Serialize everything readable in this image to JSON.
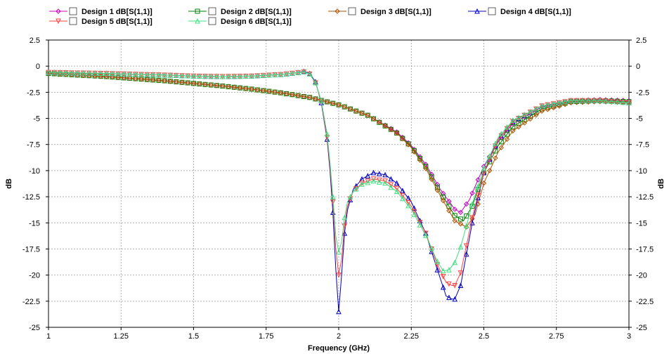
{
  "chart_data": {
    "type": "line",
    "title": "",
    "xlabel": "Frequency (GHz)",
    "ylabel": "dB",
    "ylabel_right": "dB",
    "xlim": [
      1,
      3
    ],
    "ylim": [
      -25,
      2.5
    ],
    "xticks": [
      1,
      1.25,
      1.5,
      1.75,
      2,
      2.25,
      2.5,
      2.75,
      3
    ],
    "yticks": [
      2.5,
      0,
      -2.5,
      -5,
      -7.5,
      -10,
      -12.5,
      -15,
      -17.5,
      -20,
      -22.5,
      -25
    ],
    "grid": true,
    "legend_position": "top",
    "series": [
      {
        "name": "Design 1 dB[S(1,1)]",
        "color": "#c000c0",
        "marker": "diamond",
        "x": [
          1.0,
          1.1,
          1.2,
          1.3,
          1.4,
          1.5,
          1.6,
          1.7,
          1.8,
          1.9,
          2.0,
          2.1,
          2.2,
          2.25,
          2.3,
          2.35,
          2.4,
          2.42,
          2.45,
          2.5,
          2.55,
          2.6,
          2.7,
          2.8,
          2.9,
          3.0
        ],
        "y": [
          -0.7,
          -0.85,
          -1.0,
          -1.2,
          -1.4,
          -1.65,
          -1.9,
          -2.2,
          -2.55,
          -3.0,
          -3.7,
          -4.7,
          -6.3,
          -7.6,
          -9.4,
          -11.8,
          -13.7,
          -14.0,
          -12.8,
          -9.6,
          -7.2,
          -5.5,
          -3.9,
          -3.3,
          -3.2,
          -3.3
        ]
      },
      {
        "name": "Design 2 dB[S(1,1)]",
        "color": "#008000",
        "marker": "square",
        "x": [
          1.0,
          1.1,
          1.2,
          1.3,
          1.4,
          1.5,
          1.6,
          1.7,
          1.8,
          1.9,
          2.0,
          2.1,
          2.2,
          2.25,
          2.3,
          2.35,
          2.4,
          2.43,
          2.46,
          2.5,
          2.55,
          2.6,
          2.7,
          2.8,
          2.9,
          3.0
        ],
        "y": [
          -0.7,
          -0.85,
          -1.0,
          -1.2,
          -1.4,
          -1.65,
          -1.9,
          -2.2,
          -2.55,
          -3.0,
          -3.7,
          -4.7,
          -6.4,
          -7.7,
          -9.6,
          -12.1,
          -14.3,
          -14.8,
          -13.4,
          -10.2,
          -7.6,
          -5.8,
          -4.1,
          -3.4,
          -3.3,
          -3.4
        ]
      },
      {
        "name": "Design 3 dB[S(1,1)]",
        "color": "#b05000",
        "marker": "diamond",
        "x": [
          1.0,
          1.1,
          1.2,
          1.3,
          1.4,
          1.5,
          1.6,
          1.7,
          1.8,
          1.9,
          2.0,
          2.1,
          2.2,
          2.25,
          2.3,
          2.35,
          2.4,
          2.44,
          2.47,
          2.5,
          2.55,
          2.6,
          2.7,
          2.8,
          2.9,
          3.0
        ],
        "y": [
          -0.7,
          -0.85,
          -1.0,
          -1.2,
          -1.4,
          -1.65,
          -1.9,
          -2.2,
          -2.55,
          -3.0,
          -3.7,
          -4.7,
          -6.4,
          -7.8,
          -9.8,
          -12.4,
          -14.8,
          -15.4,
          -14.2,
          -11.2,
          -8.2,
          -6.2,
          -4.3,
          -3.5,
          -3.4,
          -3.5
        ]
      },
      {
        "name": "Design 4 dB[S(1,1)]",
        "color": "#0000c0",
        "marker": "triangle",
        "x": [
          1.0,
          1.1,
          1.2,
          1.3,
          1.4,
          1.5,
          1.6,
          1.7,
          1.8,
          1.85,
          1.88,
          1.9,
          1.92,
          1.94,
          1.96,
          1.97,
          1.98,
          1.99,
          2.0,
          2.01,
          2.02,
          2.03,
          2.05,
          2.08,
          2.12,
          2.16,
          2.2,
          2.25,
          2.3,
          2.34,
          2.37,
          2.39,
          2.4,
          2.42,
          2.44,
          2.46,
          2.5,
          2.55,
          2.6,
          2.7,
          2.8,
          2.9,
          3.0
        ],
        "y": [
          -0.6,
          -0.65,
          -0.7,
          -0.78,
          -0.85,
          -0.95,
          -1.0,
          -0.95,
          -0.8,
          -0.65,
          -0.5,
          -0.7,
          -1.5,
          -3.5,
          -7.0,
          -10.0,
          -14.0,
          -19.5,
          -23.5,
          -20.0,
          -16.0,
          -13.8,
          -11.8,
          -10.8,
          -10.2,
          -10.4,
          -11.2,
          -13.0,
          -16.0,
          -19.5,
          -22.0,
          -22.3,
          -22.3,
          -21.0,
          -18.0,
          -15.0,
          -10.2,
          -7.0,
          -5.3,
          -3.8,
          -3.3,
          -3.3,
          -3.5
        ]
      },
      {
        "name": "Design 5 dB[S(1,1)]",
        "color": "#ff4040",
        "marker": "triangle-down",
        "x": [
          1.0,
          1.1,
          1.2,
          1.3,
          1.4,
          1.5,
          1.6,
          1.7,
          1.8,
          1.85,
          1.88,
          1.9,
          1.92,
          1.94,
          1.96,
          1.97,
          1.98,
          1.99,
          2.0,
          2.01,
          2.02,
          2.03,
          2.05,
          2.08,
          2.12,
          2.16,
          2.2,
          2.25,
          2.3,
          2.34,
          2.37,
          2.39,
          2.4,
          2.42,
          2.44,
          2.46,
          2.5,
          2.55,
          2.6,
          2.7,
          2.8,
          2.9,
          3.0
        ],
        "y": [
          -0.6,
          -0.65,
          -0.7,
          -0.78,
          -0.85,
          -0.95,
          -1.0,
          -0.95,
          -0.8,
          -0.65,
          -0.55,
          -0.75,
          -1.6,
          -3.4,
          -6.8,
          -9.6,
          -13.0,
          -17.5,
          -20.0,
          -18.5,
          -15.3,
          -13.4,
          -12.0,
          -11.2,
          -10.8,
          -11.0,
          -11.7,
          -13.4,
          -16.0,
          -19.0,
          -20.7,
          -21.0,
          -21.0,
          -19.8,
          -17.2,
          -14.5,
          -10.2,
          -7.0,
          -5.3,
          -3.8,
          -3.3,
          -3.3,
          -3.5
        ]
      },
      {
        "name": "Design 6 dB[S(1,1)]",
        "color": "#40e080",
        "marker": "triangle",
        "x": [
          1.0,
          1.1,
          1.2,
          1.3,
          1.4,
          1.5,
          1.6,
          1.7,
          1.8,
          1.85,
          1.88,
          1.9,
          1.92,
          1.94,
          1.96,
          1.97,
          1.98,
          1.99,
          2.0,
          2.01,
          2.02,
          2.03,
          2.05,
          2.08,
          2.12,
          2.16,
          2.2,
          2.25,
          2.3,
          2.34,
          2.36,
          2.38,
          2.4,
          2.42,
          2.44,
          2.46,
          2.5,
          2.55,
          2.6,
          2.7,
          2.8,
          2.9,
          3.0
        ],
        "y": [
          -0.6,
          -0.65,
          -0.7,
          -0.78,
          -0.85,
          -0.95,
          -1.0,
          -0.95,
          -0.8,
          -0.65,
          -0.55,
          -0.75,
          -1.6,
          -3.3,
          -6.5,
          -9.2,
          -12.5,
          -16.3,
          -17.8,
          -16.8,
          -14.5,
          -13.0,
          -12.0,
          -11.3,
          -11.0,
          -11.2,
          -12.0,
          -13.7,
          -16.2,
          -18.7,
          -19.6,
          -19.5,
          -18.8,
          -17.3,
          -15.3,
          -13.2,
          -9.8,
          -6.8,
          -5.2,
          -3.8,
          -3.3,
          -3.3,
          -3.5
        ]
      }
    ]
  }
}
